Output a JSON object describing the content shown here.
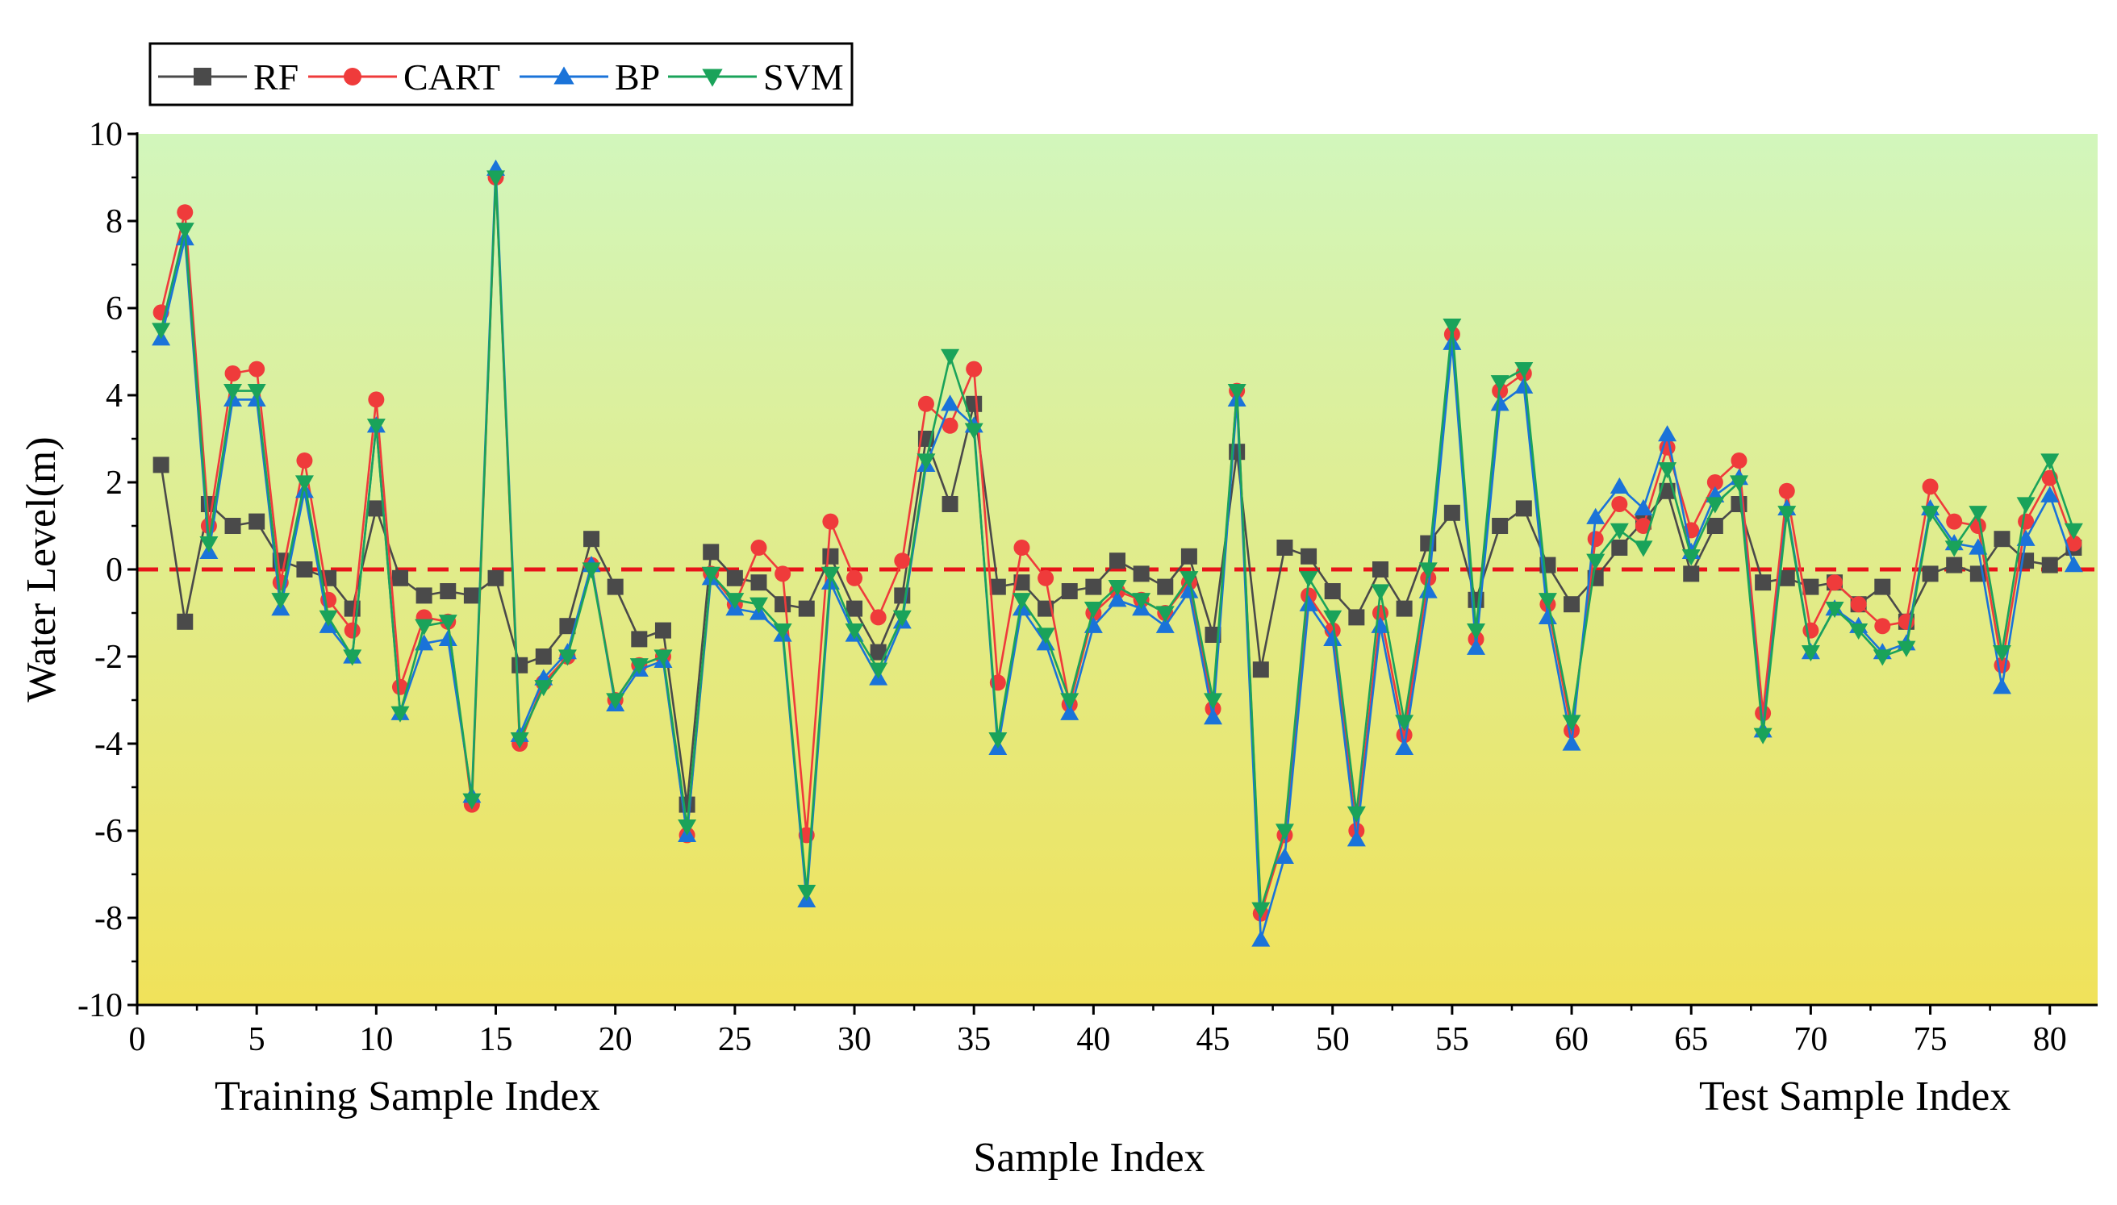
{
  "chart_data": {
    "type": "line",
    "title": "",
    "xlabel": "Sample Index",
    "ylabel": "Water Level(m)",
    "xlim": [
      0,
      82
    ],
    "ylim": [
      -10,
      10
    ],
    "xticks": [
      0,
      5,
      10,
      15,
      20,
      25,
      30,
      35,
      40,
      45,
      50,
      55,
      60,
      65,
      70,
      75,
      80
    ],
    "yticks": [
      -10,
      -8,
      -6,
      -4,
      -2,
      0,
      2,
      4,
      6,
      8,
      10
    ],
    "annotations": [
      "Training Sample Index",
      "Test Sample Index"
    ],
    "reference_line": {
      "y": 0,
      "style": "dashed",
      "color": "#e8141a"
    },
    "legend": {
      "position": "top-left",
      "orientation": "horizontal"
    },
    "background_gradient": {
      "top": "#d2f6bc",
      "bottom": "#f0e25a"
    },
    "x": [
      1,
      2,
      3,
      4,
      5,
      6,
      7,
      8,
      9,
      10,
      11,
      12,
      13,
      14,
      15,
      16,
      17,
      18,
      19,
      20,
      21,
      22,
      23,
      24,
      25,
      26,
      27,
      28,
      29,
      30,
      31,
      32,
      33,
      34,
      35,
      36,
      37,
      38,
      39,
      40,
      41,
      42,
      43,
      44,
      45,
      46,
      47,
      48,
      49,
      50,
      51,
      52,
      53,
      54,
      55,
      56,
      57,
      58,
      59,
      60,
      61,
      62,
      63,
      64,
      65,
      66,
      67,
      68,
      69,
      70,
      71,
      72,
      73,
      74,
      75,
      76,
      77,
      78,
      79,
      80,
      81
    ],
    "series": [
      {
        "name": "RF",
        "color": "#4a4a4a",
        "marker": "square",
        "values": [
          2.4,
          -1.2,
          1.5,
          1.0,
          1.1,
          0.2,
          0.0,
          -0.2,
          -0.9,
          1.4,
          -0.2,
          -0.6,
          -0.5,
          -0.6,
          -0.2,
          -2.2,
          -2.0,
          -1.3,
          0.7,
          -0.4,
          -1.6,
          -1.4,
          -5.4,
          0.4,
          -0.2,
          -0.3,
          -0.8,
          -0.9,
          0.3,
          -0.9,
          -1.9,
          -0.6,
          3.0,
          1.5,
          3.8,
          -0.4,
          -0.3,
          -0.9,
          -0.5,
          -0.4,
          0.2,
          -0.1,
          -0.4,
          0.3,
          -1.5,
          2.7,
          -2.3,
          0.5,
          0.3,
          -0.5,
          -1.1,
          0.0,
          -0.9,
          0.6,
          1.3,
          -0.7,
          1.0,
          1.4,
          0.1,
          -0.8,
          -0.2,
          0.5,
          1.1,
          1.8,
          -0.1,
          1.0,
          1.5,
          -0.3,
          -0.2,
          -0.4,
          -0.3,
          -0.8,
          -0.4,
          -1.2,
          -0.1,
          0.1,
          -0.1,
          0.7,
          0.2,
          0.1,
          0.5
        ]
      },
      {
        "name": "CART",
        "color": "#ef3b3b",
        "marker": "circle",
        "values": [
          5.9,
          8.2,
          1.0,
          4.5,
          4.6,
          -0.3,
          2.5,
          -0.7,
          -1.4,
          3.9,
          -2.7,
          -1.1,
          -1.2,
          -5.4,
          9.0,
          -4.0,
          -2.6,
          -2.0,
          0.1,
          -3.0,
          -2.2,
          -2.0,
          -6.1,
          -0.1,
          -0.8,
          0.5,
          -0.1,
          -6.1,
          1.1,
          -0.2,
          -1.1,
          0.2,
          3.8,
          3.3,
          4.6,
          -2.6,
          0.5,
          -0.2,
          -3.1,
          -1.0,
          -0.5,
          -0.7,
          -1.0,
          -0.3,
          -3.2,
          4.1,
          -7.9,
          -6.1,
          -0.6,
          -1.4,
          -6.0,
          -1.0,
          -3.8,
          -0.2,
          5.4,
          -1.6,
          4.1,
          4.5,
          -0.8,
          -3.7,
          0.7,
          1.5,
          1.0,
          2.8,
          0.9,
          2.0,
          2.5,
          -3.3,
          1.8,
          -1.4,
          -0.3,
          -0.8,
          -1.3,
          -1.2,
          1.9,
          1.1,
          1.0,
          -2.2,
          1.1,
          2.1,
          0.6
        ]
      },
      {
        "name": "BP",
        "color": "#1a73d9",
        "marker": "triangle-up",
        "values": [
          5.3,
          7.6,
          0.4,
          3.9,
          3.9,
          -0.9,
          1.8,
          -1.3,
          -2.0,
          3.3,
          -3.3,
          -1.7,
          -1.6,
          -5.2,
          9.2,
          -3.8,
          -2.5,
          -1.9,
          0.1,
          -3.1,
          -2.3,
          -2.1,
          -6.1,
          -0.2,
          -0.9,
          -1.0,
          -1.5,
          -7.6,
          -0.3,
          -1.5,
          -2.5,
          -1.2,
          2.4,
          3.8,
          3.3,
          -4.1,
          -0.9,
          -1.7,
          -3.3,
          -1.3,
          -0.7,
          -0.9,
          -1.3,
          -0.5,
          -3.4,
          3.9,
          -8.5,
          -6.6,
          -0.8,
          -1.6,
          -6.2,
          -1.3,
          -4.1,
          -0.5,
          5.2,
          -1.8,
          3.8,
          4.2,
          -1.1,
          -4.0,
          1.2,
          1.9,
          1.4,
          3.1,
          0.4,
          1.7,
          2.1,
          -3.7,
          1.4,
          -1.9,
          -0.9,
          -1.3,
          -1.9,
          -1.7,
          1.4,
          0.6,
          0.5,
          -2.7,
          0.7,
          1.7,
          0.1
        ]
      },
      {
        "name": "SVM",
        "color": "#1aa35a",
        "marker": "triangle-down",
        "values": [
          5.5,
          7.8,
          0.6,
          4.1,
          4.1,
          -0.7,
          2.0,
          -1.1,
          -2.0,
          3.3,
          -3.3,
          -1.3,
          -1.2,
          -5.3,
          9.0,
          -3.9,
          -2.7,
          -2.0,
          0.0,
          -3.0,
          -2.2,
          -2.0,
          -5.9,
          -0.1,
          -0.7,
          -0.8,
          -1.4,
          -7.4,
          -0.1,
          -1.4,
          -2.3,
          -1.1,
          2.5,
          4.9,
          3.2,
          -3.9,
          -0.7,
          -1.5,
          -3.0,
          -0.9,
          -0.4,
          -0.7,
          -1.0,
          -0.2,
          -3.0,
          4.1,
          -7.8,
          -6.0,
          -0.2,
          -1.1,
          -5.6,
          -0.5,
          -3.5,
          0.0,
          5.6,
          -1.4,
          4.3,
          4.6,
          -0.7,
          -3.5,
          0.2,
          0.9,
          0.5,
          2.3,
          0.3,
          1.5,
          2.0,
          -3.8,
          1.3,
          -1.9,
          -0.9,
          -1.4,
          -2.0,
          -1.8,
          1.3,
          0.5,
          1.3,
          -1.9,
          1.5,
          2.5,
          0.9
        ]
      }
    ]
  }
}
